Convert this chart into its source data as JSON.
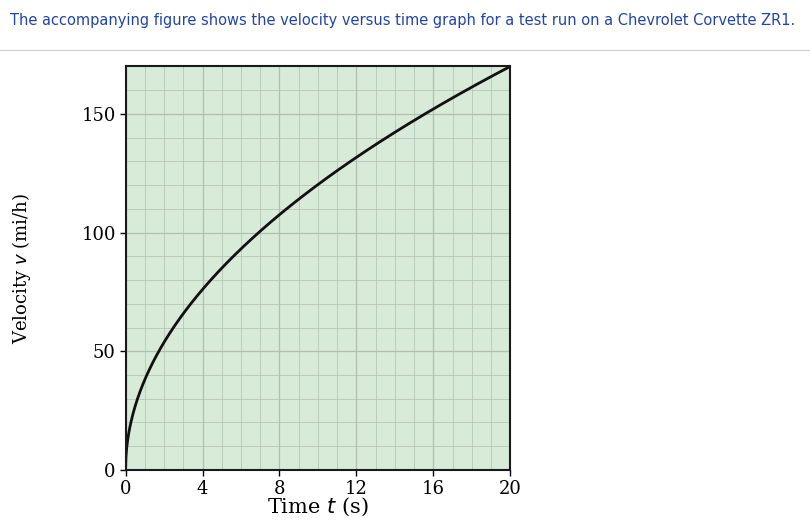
{
  "title_text": "The accompanying figure shows the velocity versus time graph for a test run on a Chevrolet Corvette ZR1.",
  "xlabel_text": "Time ",
  "xlabel_italic": "t",
  "xlabel_unit": " (s)",
  "ylabel_text": "Velocity ",
  "ylabel_italic": "v",
  "ylabel_unit": " (mi/h)",
  "xlim": [
    0,
    20
  ],
  "ylim": [
    0,
    170
  ],
  "xticks": [
    0,
    4,
    8,
    12,
    16,
    20
  ],
  "yticks": [
    0,
    50,
    100,
    150
  ],
  "grid_color": "#b0bfb0",
  "grid_bg_color": "#d8ead8",
  "curve_color": "#111111",
  "curve_linewidth": 2.0,
  "title_fontsize": 10.5,
  "title_color": "#2244aa",
  "axis_label_fontsize": 13,
  "tick_fontsize": 13,
  "curve_scale": 170,
  "curve_power": 0.5
}
